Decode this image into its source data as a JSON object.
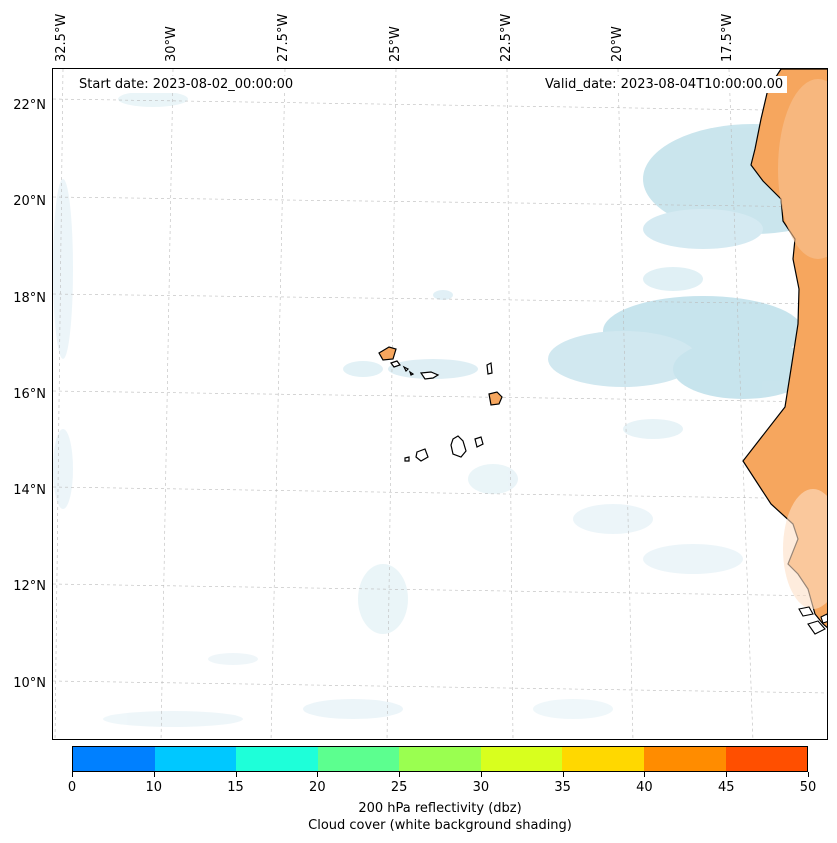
{
  "map": {
    "start_date": "Start date: 2023-08-02_00:00:00",
    "valid_date": "Valid_date: 2023-08-04T10:00:00.00",
    "lat_labels": [
      "22°N",
      "20°N",
      "18°N",
      "16°N",
      "14°N",
      "12°N",
      "10°N"
    ],
    "lon_labels": [
      "32.5°W",
      "30°W",
      "27.5°W",
      "25°W",
      "22.5°W",
      "20°W",
      "17.5°W"
    ],
    "land_color": "#f4a460",
    "cloud_color": "#add8e6",
    "coast_color": "#000000"
  },
  "colorbar": {
    "title": "200 hPa reflectivity (dbz)",
    "subtitle": "Cloud cover (white background shading)",
    "ticks": [
      "0",
      "10",
      "15",
      "20",
      "25",
      "30",
      "35",
      "40",
      "45",
      "50"
    ],
    "colors": [
      "#0080ff",
      "#00c8ff",
      "#1effd9",
      "#5cff8f",
      "#9aff50",
      "#d8ff1e",
      "#ffd800",
      "#ff8c00",
      "#ff4f00"
    ]
  }
}
